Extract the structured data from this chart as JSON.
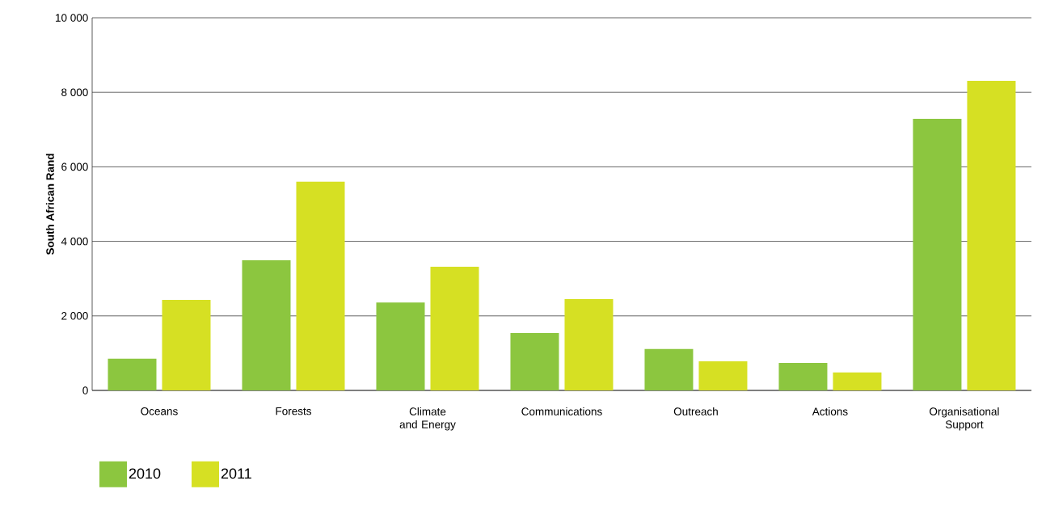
{
  "chart_data": {
    "type": "bar",
    "ylabel": "South African Rand",
    "categories": [
      "Oceans",
      "Forests",
      "Climate and Energy",
      "Communications",
      "Outreach",
      "Actions",
      "Organisational Support"
    ],
    "series": [
      {
        "name": "2010",
        "color": "#8cc63f",
        "values": [
          850,
          3490,
          2360,
          1540,
          1110,
          740,
          7290
        ]
      },
      {
        "name": "2011",
        "color": "#d6e023",
        "values": [
          2430,
          5600,
          3320,
          2450,
          780,
          480,
          8310
        ]
      }
    ],
    "ylim": [
      0,
      10000
    ],
    "yticks": [
      0,
      {
        "value": 2000,
        "label": "2 000"
      },
      {
        "value": 4000,
        "label": "4 000"
      },
      {
        "value": 6000,
        "label": "6 000"
      },
      {
        "value": 8000,
        "label": "8 000"
      },
      {
        "value": 10000,
        "label": "10 000"
      }
    ],
    "grid": "y",
    "legend": "bottom left"
  }
}
